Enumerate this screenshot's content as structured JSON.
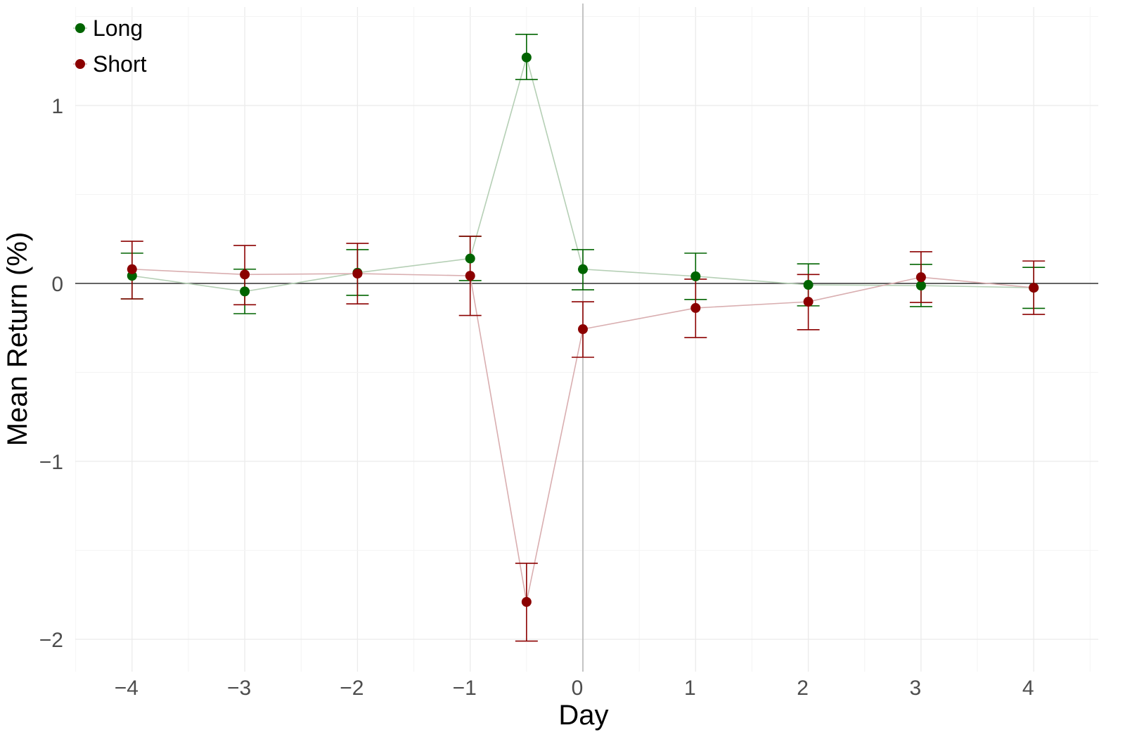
{
  "chart_data": {
    "type": "line",
    "title": "",
    "xlabel": "Day",
    "ylabel": "Mean Return (%)",
    "xlim": [
      -4.5,
      4.57
    ],
    "ylim": [
      -2.18,
      1.55
    ],
    "x_ticks": [
      -4,
      -3,
      -2,
      -1,
      0,
      1,
      2,
      3,
      4
    ],
    "x_tick_labels": [
      "−4",
      "−3",
      "−2",
      "−1",
      "0",
      "1",
      "2",
      "3",
      "4"
    ],
    "y_ticks": [
      1,
      0,
      -1,
      -2
    ],
    "y_tick_labels": [
      "1",
      "0",
      "−1",
      "−2"
    ],
    "grid": true,
    "reference_lines": {
      "horizontal": 0,
      "vertical": 0
    },
    "legend_position": "top-left",
    "x": [
      -4,
      -3,
      -2,
      -1,
      -0.5,
      0,
      1,
      2,
      3,
      4
    ],
    "series": [
      {
        "name": "Long",
        "color": "#006400",
        "line_color": "#b5cfb5",
        "values": [
          0.043,
          -0.045,
          0.06,
          0.14,
          1.27,
          0.08,
          0.04,
          -0.008,
          -0.012,
          -0.024
        ],
        "upper": [
          0.17,
          0.08,
          0.19,
          0.265,
          1.4,
          0.19,
          0.17,
          0.11,
          0.107,
          0.09
        ],
        "lower": [
          -0.087,
          -0.17,
          -0.067,
          0.016,
          1.146,
          -0.036,
          -0.09,
          -0.126,
          -0.13,
          -0.14
        ]
      },
      {
        "name": "Short",
        "color": "#8b0000",
        "line_color": "#d9aeb0",
        "values": [
          0.08,
          0.05,
          0.055,
          0.043,
          -1.79,
          -0.257,
          -0.138,
          -0.103,
          0.035,
          -0.024
        ],
        "upper": [
          0.237,
          0.213,
          0.225,
          0.265,
          -1.573,
          -0.103,
          0.024,
          0.05,
          0.178,
          0.126
        ],
        "lower": [
          -0.087,
          -0.12,
          -0.115,
          -0.18,
          -2.01,
          -0.415,
          -0.304,
          -0.26,
          -0.107,
          -0.174
        ]
      }
    ]
  }
}
